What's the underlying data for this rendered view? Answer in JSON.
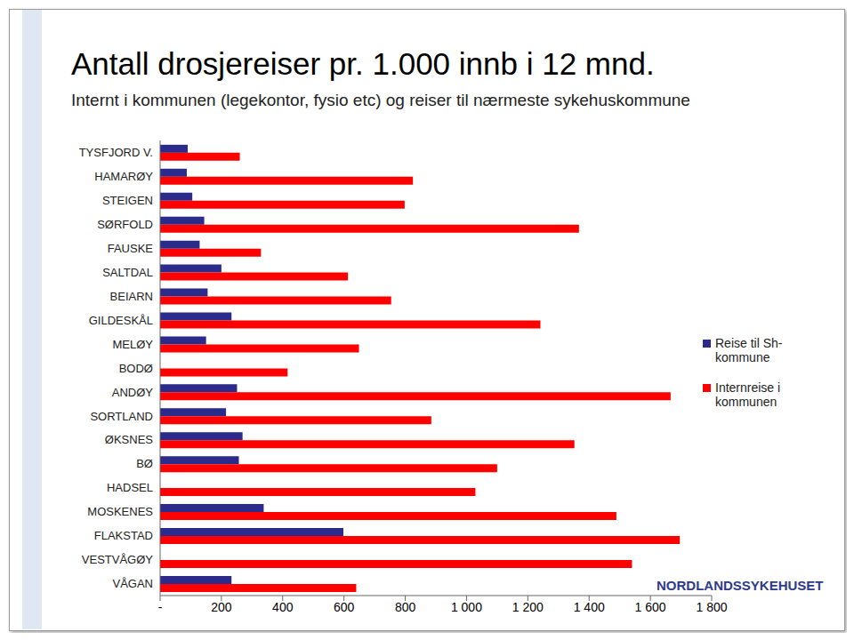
{
  "chart_data": {
    "type": "bar",
    "orientation": "horizontal",
    "title": "Antall drosjereiser pr. 1.000 innb i 12 mnd.",
    "subtitle": "Internt i kommunen (legekontor, fysio etc) og reiser til nærmeste sykehuskommune",
    "annotations": [
      "NORDLANDSSYKEHUSET"
    ],
    "categories": [
      "TYSFJORD V.",
      "HAMARØY",
      "STEIGEN",
      "SØRFOLD",
      "FAUSKE",
      "SALTDAL",
      "BEIARN",
      "GILDESKÅL",
      "MELØY",
      "BODØ",
      "ANDØY",
      "SORTLAND",
      "ØKSNES",
      "BØ",
      "HADSEL",
      "MOSKENES",
      "FLAKSTAD",
      "VESTVÅGØY",
      "VÅGAN"
    ],
    "series": [
      {
        "name": "Reise til Sh-kommune",
        "color": "#2b2b8c",
        "values": [
          90,
          87,
          105,
          144,
          129,
          200,
          155,
          233,
          150,
          null,
          251,
          215,
          269,
          257,
          null,
          338,
          598,
          null,
          233
        ]
      },
      {
        "name": "Internreise i kommunen",
        "color": "#ff0000",
        "values": [
          260,
          825,
          798,
          1367,
          329,
          613,
          754,
          1241,
          649,
          416,
          1666,
          885,
          1352,
          1100,
          1029,
          1489,
          1696,
          1540,
          640
        ]
      }
    ],
    "xlim": [
      0,
      1800
    ],
    "xticks": [
      {
        "value": 0,
        "label": "-"
      },
      200,
      400,
      600,
      800,
      {
        "value": 1000,
        "label": "1 000"
      },
      {
        "value": 1200,
        "label": "1 200"
      },
      {
        "value": 1400,
        "label": "1 400"
      },
      {
        "value": 1600,
        "label": "1 600"
      },
      {
        "value": 1800,
        "label": "1 800"
      }
    ],
    "grid": false,
    "legend": "right",
    "data_labels": false
  }
}
